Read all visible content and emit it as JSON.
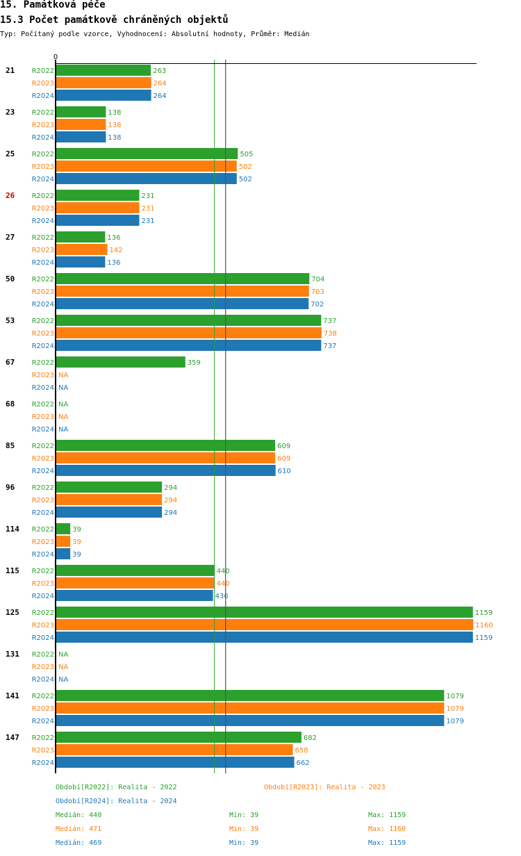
{
  "header": {
    "title": "15. Památková péče",
    "subtitle": "15.3 Počet památkově chráněných objektů",
    "type_line": "Typ: Počítaný podle vzorce, Vyhodnocení: Absolutní hodnoty, Průměr: Medián"
  },
  "colors": {
    "R2022": "#2ca02c",
    "R2023": "#ff7f0e",
    "R2024": "#1f77b4",
    "highlight": "#cc0000",
    "axis": "#000000",
    "median_line_2022": "#2ca02c",
    "median_line_other": "#555555"
  },
  "chart_data": {
    "type": "bar",
    "orientation": "horizontal",
    "axis_zero_label": "0",
    "xlim": [
      0,
      1160
    ],
    "highlight_category": "26",
    "na_label": "NA",
    "series_names": [
      "R2022",
      "R2023",
      "R2024"
    ],
    "categories": [
      "21",
      "23",
      "25",
      "26",
      "27",
      "50",
      "53",
      "67",
      "68",
      "85",
      "96",
      "114",
      "115",
      "125",
      "131",
      "141",
      "147"
    ],
    "series": [
      {
        "name": "R2022",
        "values": [
          263,
          138,
          505,
          231,
          136,
          704,
          737,
          359,
          null,
          609,
          294,
          39,
          440,
          1159,
          null,
          1079,
          682
        ]
      },
      {
        "name": "R2023",
        "values": [
          264,
          138,
          502,
          231,
          142,
          703,
          738,
          null,
          null,
          609,
          294,
          39,
          440,
          1160,
          null,
          1079,
          658
        ]
      },
      {
        "name": "R2024",
        "values": [
          264,
          138,
          502,
          231,
          136,
          702,
          737,
          null,
          null,
          610,
          294,
          39,
          436,
          1159,
          null,
          1079,
          662
        ]
      }
    ],
    "median_lines": [
      {
        "series": "R2022",
        "value": 440
      },
      {
        "series": "R2023",
        "value": 471
      },
      {
        "series": "R2024",
        "value": 469
      }
    ]
  },
  "legend": {
    "periods": [
      "Období[R2022]: Realita - 2022",
      "Období[R2023]: Realita - 2023",
      "Období[R2024]: Realita - 2024"
    ],
    "stats": [
      {
        "median": "Medián: 440",
        "min": "Min: 39",
        "max": "Max: 1159"
      },
      {
        "median": "Medián: 471",
        "min": "Min: 39",
        "max": "Max: 1160"
      },
      {
        "median": "Medián: 469",
        "min": "Min: 39",
        "max": "Max: 1159"
      }
    ]
  }
}
